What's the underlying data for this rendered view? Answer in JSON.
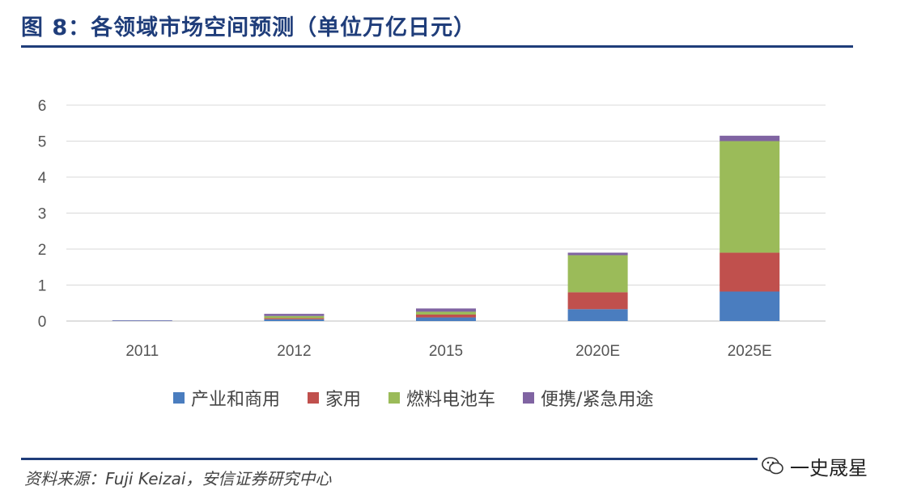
{
  "figure": {
    "title": "图 8：各领域市场空间预测（单位万亿日元）",
    "source": "资料来源：Fuji Keizai，安信证券研究中心",
    "watermark": "一史晟星",
    "watermark_icon": "wechat-icon"
  },
  "chart_data": {
    "type": "bar",
    "stacked": true,
    "categories": [
      "2011",
      "2012",
      "2015",
      "2020E",
      "2025E"
    ],
    "series": [
      {
        "name": "产业和商用",
        "color": "#4a7dbf",
        "values": [
          0.01,
          0.05,
          0.1,
          0.33,
          0.82
        ]
      },
      {
        "name": "家用",
        "color": "#c0504d",
        "values": [
          0.0,
          0.03,
          0.08,
          0.47,
          1.08
        ]
      },
      {
        "name": "燃料电池车",
        "color": "#9bbb59",
        "values": [
          0.0,
          0.06,
          0.08,
          1.03,
          3.1
        ]
      },
      {
        "name": "便携/紧急用途",
        "color": "#8064a2",
        "values": [
          0.01,
          0.06,
          0.09,
          0.07,
          0.15
        ]
      }
    ],
    "title": "",
    "xlabel": "",
    "ylabel": "",
    "ylim": [
      0,
      6
    ],
    "yticks": [
      "0",
      "1",
      "2",
      "3",
      "4",
      "5",
      "6"
    ],
    "grid": true,
    "legend_position": "bottom"
  }
}
